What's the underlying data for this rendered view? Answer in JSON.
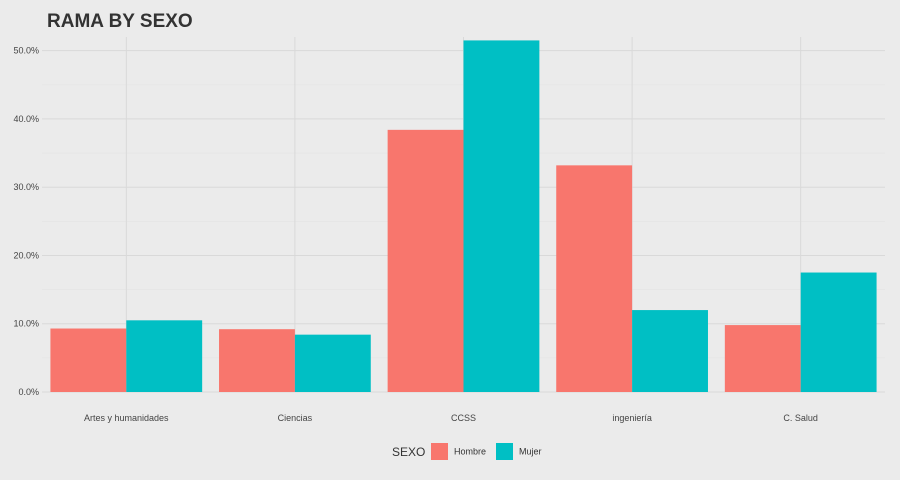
{
  "chart_data": {
    "type": "bar",
    "title": "RAMA BY SEXO",
    "xlabel": "",
    "ylabel": "",
    "categories": [
      "Artes y humanidades",
      "Ciencias",
      "CCSS",
      "ingeniería",
      "C. Salud"
    ],
    "series": [
      {
        "name": "Hombre",
        "color": "#F8766D",
        "values": [
          9.3,
          9.2,
          38.4,
          33.2,
          9.8
        ]
      },
      {
        "name": "Mujer",
        "color": "#00BFC4",
        "values": [
          10.5,
          8.4,
          51.5,
          12.0,
          17.5
        ]
      }
    ],
    "ylim": [
      0,
      52
    ],
    "yticks": [
      0,
      10,
      20,
      30,
      40,
      50
    ],
    "ytick_labels": [
      "0.0%",
      "10.0%",
      "20.0%",
      "30.0%",
      "40.0%",
      "50.0%"
    ],
    "grid": true,
    "legend": {
      "title": "SEXO",
      "position": "bottom"
    }
  }
}
